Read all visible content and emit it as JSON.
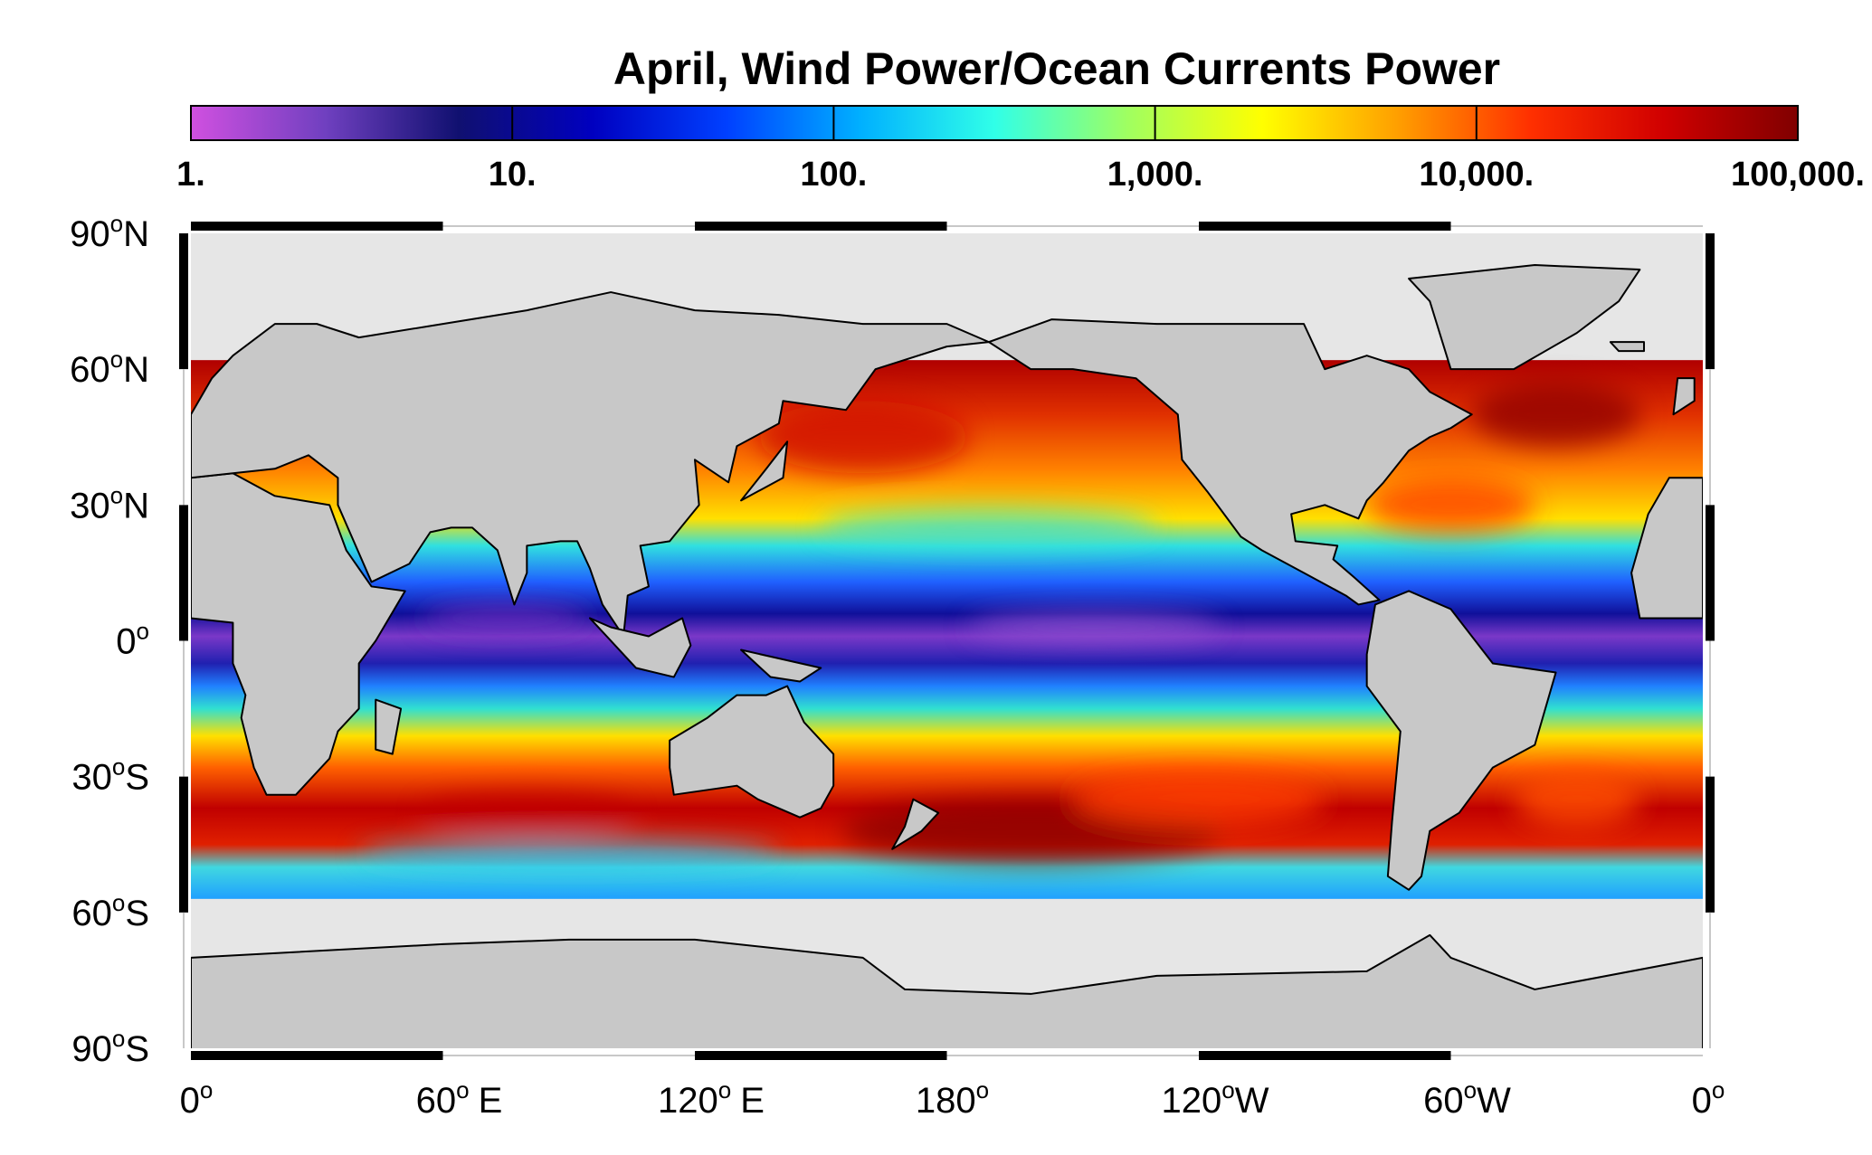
{
  "title": "April, Wind Power/Ocean Currents Power",
  "colorbar": {
    "scale": "log",
    "lim": [
      1,
      100000
    ],
    "colormap": [
      "#d050e0",
      "#7040c0",
      "#101070",
      "#0000c0",
      "#0040ff",
      "#00b0ff",
      "#30ffe8",
      "#a0ff60",
      "#ffff00",
      "#ffa000",
      "#ff3000",
      "#d00000",
      "#800000"
    ],
    "ticks": [
      {
        "value": 1,
        "label": "1."
      },
      {
        "value": 10,
        "label": "10."
      },
      {
        "value": 100,
        "label": "100."
      },
      {
        "value": 1000,
        "label": "1,000."
      },
      {
        "value": 10000,
        "label": "10,000."
      },
      {
        "value": 100000,
        "label": "100,000."
      }
    ]
  },
  "map": {
    "lon_lim": [
      0,
      360
    ],
    "lat_lim": [
      -90,
      90
    ],
    "lat_ticks": [
      {
        "value": 90,
        "label": "90",
        "sup": "o",
        "suffix": "N"
      },
      {
        "value": 60,
        "label": "60",
        "sup": "o",
        "suffix": "N"
      },
      {
        "value": 30,
        "label": "30",
        "sup": "o",
        "suffix": "N"
      },
      {
        "value": 0,
        "label": "0",
        "sup": "o"
      },
      {
        "value": -30,
        "label": "30",
        "sup": "o",
        "suffix": "S"
      },
      {
        "value": -60,
        "label": "60",
        "sup": "o",
        "suffix": "S"
      },
      {
        "value": -90,
        "label": "90",
        "sup": "o",
        "suffix": "S"
      }
    ],
    "lon_ticks": [
      {
        "value": 0,
        "label": "0",
        "sup": "o"
      },
      {
        "value": 60,
        "label": "60",
        "sup": "o",
        "suffix": "E"
      },
      {
        "value": 120,
        "label": "120",
        "sup": "o",
        "suffix": "E"
      },
      {
        "value": 180,
        "label": "180",
        "sup": "o"
      },
      {
        "value": 240,
        "label": "120",
        "sup": "o",
        "suffix": "W"
      },
      {
        "value": 300,
        "label": "60",
        "sup": "o",
        "suffix": "W"
      },
      {
        "value": 360,
        "label": "0",
        "sup": "o"
      }
    ]
  }
}
